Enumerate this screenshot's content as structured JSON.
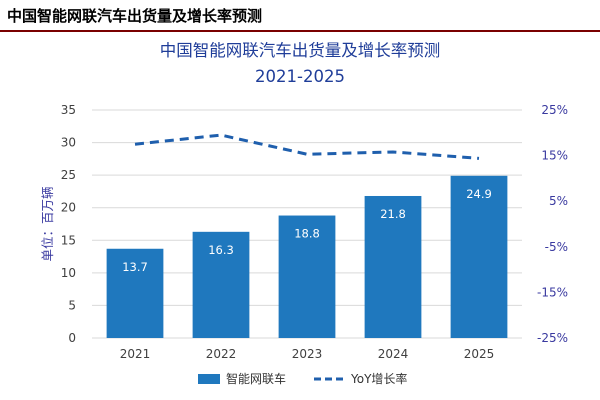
{
  "header": {
    "title": "中国智能网联汽车出货量及增长率预测"
  },
  "chart_data": {
    "type": "bar",
    "title": "中国智能网联汽车出货量及增长率预测",
    "subtitle": "2021-2025",
    "ylabel": "单位：百万辆",
    "categories": [
      "2021",
      "2022",
      "2023",
      "2024",
      "2025"
    ],
    "series": [
      {
        "name": "智能网联车",
        "type": "bar",
        "axis": "left",
        "values": [
          13.7,
          16.3,
          18.8,
          21.8,
          24.9
        ],
        "labels": [
          "13.7",
          "16.3",
          "18.8",
          "21.8",
          "24.9"
        ]
      },
      {
        "name": "YoY增长率",
        "type": "line",
        "style": "dashed",
        "axis": "right",
        "values": [
          17.5,
          19.5,
          15.3,
          15.8,
          14.4
        ]
      }
    ],
    "ylim": [
      0,
      35
    ],
    "y_ticks": [
      "0",
      "5",
      "10",
      "15",
      "20",
      "25",
      "30",
      "35"
    ],
    "y2lim": [
      -25,
      25
    ],
    "y2_ticks": [
      "25%",
      "15%",
      "5%",
      "-5%",
      "-15%",
      "-25%"
    ],
    "grid": true,
    "legend": "bottom",
    "colors": {
      "bar": "#1f78be",
      "line": "#1f5fad",
      "grid": "#d9d9d9",
      "title": "#1f3d99",
      "header_rule": "#7a0000"
    }
  }
}
